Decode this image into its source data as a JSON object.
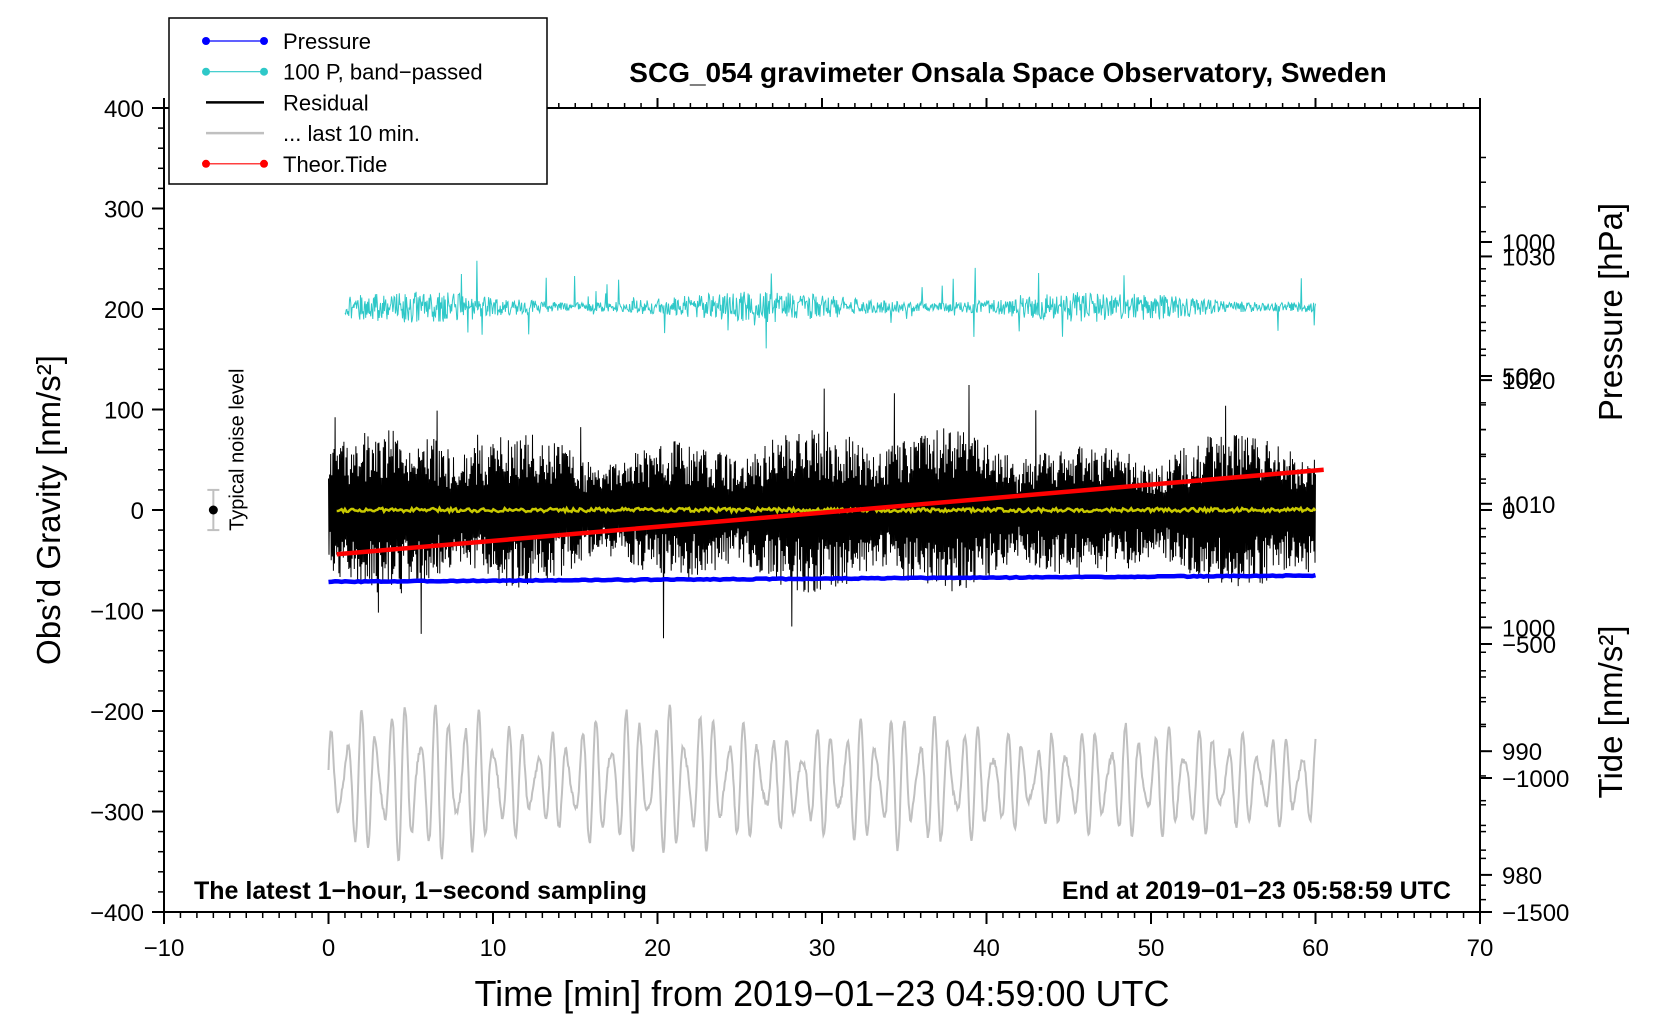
{
  "chart_data": {
    "type": "line",
    "title": "SCG_054 gravimeter Onsala Space Observatory, Sweden",
    "xlabel": "Time [min] from 2019−01−23 04:59:00 UTC",
    "ylabel_left": "Obs’d Gravity [nm/s²]",
    "ylabel_right_top": "Pressure [hPa]",
    "ylabel_right_bottom": "Tide [nm/s²]",
    "xlim": [
      -10,
      70
    ],
    "ylim_left": [
      -400,
      400
    ],
    "pressure_axis_range": [
      977,
      1042
    ],
    "tide_axis_range": [
      -1500,
      1500
    ],
    "x_ticks": [
      "−10",
      "0",
      "10",
      "20",
      "30",
      "40",
      "50",
      "60",
      "70"
    ],
    "x_tick_values": [
      -10,
      0,
      10,
      20,
      30,
      40,
      50,
      60,
      70
    ],
    "y_left_ticks": [
      "400",
      "300",
      "200",
      "100",
      "0",
      "−100",
      "−200",
      "−300",
      "−400"
    ],
    "y_left_tick_values": [
      400,
      300,
      200,
      100,
      0,
      -100,
      -200,
      -300,
      -400
    ],
    "y_pressure_ticks": [
      "1030",
      "1020",
      "1010",
      "1000",
      "990",
      "980"
    ],
    "y_pressure_tick_values": [
      1030,
      1020,
      1010,
      1000,
      990,
      980
    ],
    "y_tide_ticks": [
      "1000",
      "500",
      "0",
      "−500",
      "−1000",
      "−1500"
    ],
    "y_tide_tick_values": [
      1000,
      500,
      0,
      -500,
      -1000,
      -1500
    ],
    "legend": [
      {
        "name": "Pressure",
        "color": "#0000ff",
        "marker": true
      },
      {
        "name": "100 P, band−passed",
        "color": "#2ec8c8",
        "marker": true
      },
      {
        "name": "Residual",
        "color": "#000000",
        "marker": false
      },
      {
        "name": "... last 10 min.",
        "color": "#c0c0c0",
        "marker": false
      },
      {
        "name": "Theor.Tide",
        "color": "#ff0000",
        "marker": true
      }
    ],
    "legend_position": "top-left",
    "annotations": {
      "noise_label": "Typical noise level",
      "bottom_left": "The latest 1−hour, 1−second sampling",
      "bottom_right": "End at 2019−01−23 05:58:59 UTC"
    },
    "noise_bar": {
      "x": -7,
      "center": 0,
      "half_range": 20
    },
    "series": [
      {
        "name": "Pressure",
        "axis": "pressure",
        "color": "#0000ff",
        "x_range": [
          0,
          60
        ],
        "start": 1003.7,
        "end": 1004.2
      },
      {
        "name": "100 P, band−passed",
        "axis": "left",
        "color": "#2ec8c8",
        "x_range": [
          1,
          60
        ],
        "center": 202,
        "amplitude": 22
      },
      {
        "name": "Residual",
        "axis": "left",
        "color": "#000000",
        "x_range": [
          0,
          60
        ],
        "center": 0,
        "amplitude": 80
      },
      {
        "name": "Residual smoothed",
        "axis": "left",
        "color": "#c8c800",
        "x_range": [
          0.5,
          60
        ],
        "center": 0,
        "amplitude": 2
      },
      {
        "name": "... last 10 min.",
        "axis": "left",
        "color": "#c0c0c0",
        "x_range": [
          0,
          60
        ],
        "center": -270,
        "amplitude": 55
      },
      {
        "name": "Theor.Tide",
        "axis": "tide",
        "color": "#ff0000",
        "x_range": [
          0.5,
          60.5
        ],
        "start": -165,
        "end": 150
      }
    ]
  }
}
